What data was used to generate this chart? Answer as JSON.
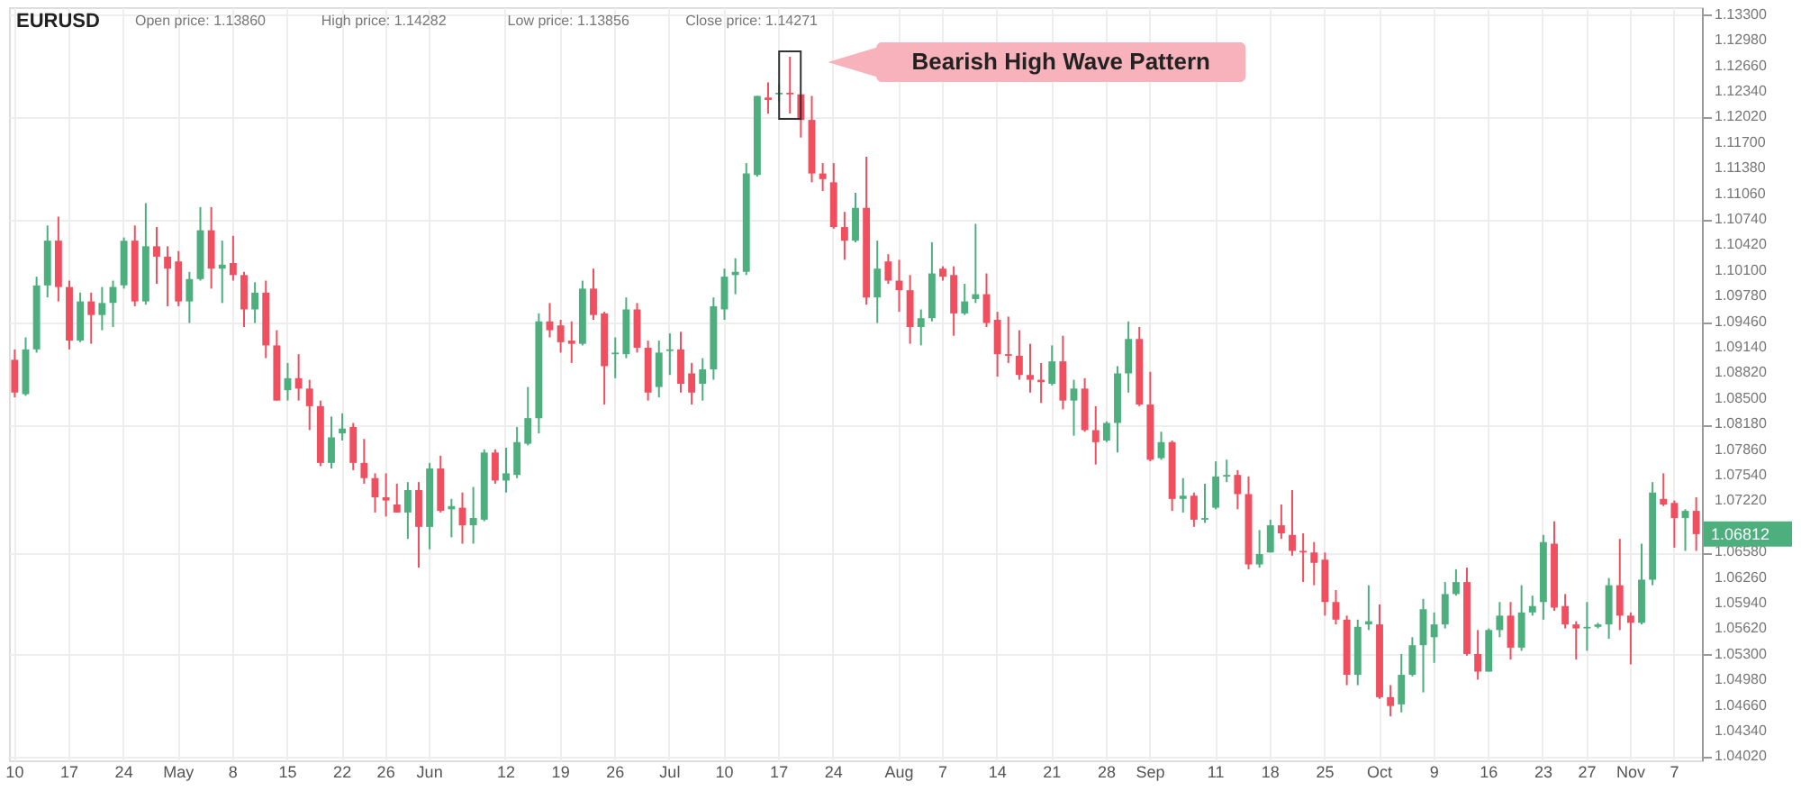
{
  "chart_data": {
    "type": "candlestick",
    "title": "EURUSD",
    "annotations": [
      "Open price: 1.13860",
      "High price: 1.14282",
      "Low price: 1.13856",
      "Close price: 1.14271",
      "Bearish High Wave Pattern",
      "1.06812"
    ],
    "categories": [
      "10",
      null,
      null,
      null,
      null,
      "17",
      null,
      null,
      null,
      null,
      "24",
      null,
      null,
      null,
      null,
      "May",
      null,
      null,
      null,
      null,
      "8",
      null,
      null,
      null,
      null,
      "15",
      null,
      null,
      null,
      null,
      "22",
      null,
      null,
      null,
      "26",
      null,
      null,
      null,
      "Jun",
      null,
      null,
      null,
      null,
      null,
      null,
      "12",
      null,
      null,
      null,
      null,
      "19",
      null,
      null,
      null,
      null,
      "26",
      null,
      null,
      null,
      null,
      "Jul",
      null,
      null,
      null,
      null,
      "10",
      null,
      null,
      null,
      null,
      "17",
      null,
      null,
      null,
      null,
      "24",
      null,
      null,
      null,
      null,
      null,
      "Aug",
      null,
      null,
      null,
      "7",
      null,
      null,
      null,
      null,
      "14",
      null,
      null,
      null,
      null,
      "21",
      null,
      null,
      null,
      null,
      "28",
      null,
      null,
      null,
      "Sep",
      null,
      null,
      null,
      null,
      null,
      "11",
      null,
      null,
      null,
      null,
      "18",
      null,
      null,
      null,
      null,
      "25",
      null,
      null,
      null,
      null,
      "Oct",
      null,
      null,
      null,
      null,
      "9",
      null,
      null,
      null,
      null,
      "16",
      null,
      null,
      null,
      null,
      "23",
      null,
      null,
      null,
      "27",
      null,
      null,
      null,
      "Nov",
      null,
      null,
      null,
      "7",
      null,
      null
    ],
    "ohlc": [
      [
        1.0899,
        1.0912,
        1.0852,
        1.0858
      ],
      [
        1.0856,
        1.0927,
        1.0854,
        1.0912
      ],
      [
        1.0912,
        1.1003,
        1.0908,
        1.0992
      ],
      [
        1.0992,
        1.1067,
        1.0977,
        1.1048
      ],
      [
        1.1048,
        1.1078,
        1.0972,
        1.099
      ],
      [
        1.099,
        1.0998,
        1.0912,
        1.0923
      ],
      [
        1.0923,
        1.0983,
        1.0921,
        1.0972
      ],
      [
        1.0972,
        1.0983,
        1.0919,
        1.0955
      ],
      [
        1.0955,
        1.099,
        1.0936,
        1.097
      ],
      [
        1.097,
        1.0998,
        1.094,
        1.099
      ],
      [
        1.0992,
        1.1052,
        1.0988,
        1.1048
      ],
      [
        1.1048,
        1.1067,
        1.0966,
        1.0972
      ],
      [
        1.0972,
        1.1095,
        1.0968,
        1.1041
      ],
      [
        1.1041,
        1.1065,
        1.0994,
        1.1028
      ],
      [
        1.1028,
        1.1041,
        1.0966,
        1.1013
      ],
      [
        1.1022,
        1.1035,
        1.0966,
        1.0972
      ],
      [
        1.0972,
        1.1009,
        1.0945,
        1.1
      ],
      [
        1.1,
        1.109,
        1.0998,
        1.1061
      ],
      [
        1.1061,
        1.109,
        1.0988,
        1.1013
      ],
      [
        1.1013,
        1.1048,
        1.097,
        1.1018
      ],
      [
        1.102,
        1.1054,
        1.0998,
        1.1005
      ],
      [
        1.1005,
        1.1009,
        1.094,
        1.0962
      ],
      [
        1.0962,
        1.0996,
        1.0945,
        1.0983
      ],
      [
        1.0983,
        1.0998,
        1.0901,
        1.0917
      ],
      [
        1.0917,
        1.0936,
        1.0848,
        1.0848
      ],
      [
        1.0861,
        1.0895,
        1.0848,
        1.0876
      ],
      [
        1.0876,
        1.0906,
        1.0848,
        1.0863
      ],
      [
        1.0863,
        1.0874,
        1.0811,
        1.0841
      ],
      [
        1.0841,
        1.0848,
        1.0766,
        1.077
      ],
      [
        1.077,
        1.0828,
        1.0763,
        1.0802
      ],
      [
        1.0807,
        1.0832,
        1.0798,
        1.0813
      ],
      [
        1.0815,
        1.082,
        1.0761,
        1.077
      ],
      [
        1.077,
        1.08,
        1.0744,
        1.0751
      ],
      [
        1.0751,
        1.0757,
        1.0708,
        1.0727
      ],
      [
        1.0727,
        1.0757,
        1.0703,
        1.0723
      ],
      [
        1.0718,
        1.0744,
        1.0708,
        1.0708
      ],
      [
        1.0708,
        1.0746,
        1.0675,
        1.0736
      ],
      [
        1.0736,
        1.0746,
        1.0639,
        1.069
      ],
      [
        1.069,
        1.077,
        1.0662,
        1.0763
      ],
      [
        1.0763,
        1.0779,
        1.0708,
        1.071
      ],
      [
        1.0712,
        1.0725,
        1.0677,
        1.0716
      ],
      [
        1.0714,
        1.0733,
        1.0669,
        1.0692
      ],
      [
        1.0692,
        1.074,
        1.0669,
        1.0701
      ],
      [
        1.0699,
        1.0787,
        1.0697,
        1.0783
      ],
      [
        1.0783,
        1.0787,
        1.0744,
        1.0748
      ],
      [
        1.0748,
        1.0789,
        1.0733,
        1.0757
      ],
      [
        1.0755,
        1.0815,
        1.0751,
        1.0796
      ],
      [
        1.0794,
        1.0865,
        1.0792,
        1.0826
      ],
      [
        1.0826,
        1.0957,
        1.0807,
        1.0947
      ],
      [
        1.0947,
        1.097,
        1.0927,
        1.0936
      ],
      [
        1.0942,
        1.0949,
        1.0908,
        1.0921
      ],
      [
        1.0923,
        1.0947,
        1.0895,
        1.0919
      ],
      [
        1.0919,
        1.0998,
        1.0917,
        1.0988
      ],
      [
        1.0988,
        1.1013,
        1.0949,
        1.0955
      ],
      [
        1.0957,
        1.0959,
        1.0843,
        1.0891
      ],
      [
        1.0906,
        1.0927,
        1.0876,
        1.0908
      ],
      [
        1.0906,
        1.0977,
        1.0901,
        1.0962
      ],
      [
        1.0962,
        1.097,
        1.0908,
        1.0914
      ],
      [
        1.0914,
        1.0923,
        1.0848,
        1.0858
      ],
      [
        1.0865,
        1.0923,
        1.0852,
        1.0908
      ],
      [
        1.091,
        1.0932,
        1.088,
        1.0912
      ],
      [
        1.0912,
        1.0934,
        1.0858,
        1.0869
      ],
      [
        1.0882,
        1.0895,
        1.0843,
        1.0858
      ],
      [
        1.0869,
        1.0901,
        1.0848,
        1.0887
      ],
      [
        1.0887,
        1.0977,
        1.0874,
        1.0966
      ],
      [
        1.0962,
        1.1013,
        1.0949,
        1.1003
      ],
      [
        1.1005,
        1.1026,
        1.0981,
        1.1009
      ],
      [
        1.1009,
        1.1145,
        1.1005,
        1.1132
      ],
      [
        1.113,
        1.1229,
        1.1128,
        1.1229
      ],
      [
        1.1227,
        1.1246,
        1.1207,
        1.1224
      ],
      [
        1.1231,
        1.1244,
        1.1222,
        1.1233
      ],
      [
        1.1233,
        1.1278,
        1.1207,
        1.1231
      ],
      [
        1.1231,
        1.1231,
        1.1177,
        1.1199
      ],
      [
        1.1199,
        1.1229,
        1.1121,
        1.1132
      ],
      [
        1.1132,
        1.1145,
        1.111,
        1.1125
      ],
      [
        1.1121,
        1.1145,
        1.1063,
        1.1065
      ],
      [
        1.1065,
        1.1084,
        1.1024,
        1.1048
      ],
      [
        1.1048,
        1.1108,
        1.1046,
        1.1089
      ],
      [
        1.1089,
        1.1153,
        1.0968,
        1.0977
      ],
      [
        1.0977,
        1.1048,
        1.0945,
        1.1013
      ],
      [
        1.1022,
        1.1031,
        1.0994,
        1.0998
      ],
      [
        1.0998,
        1.1024,
        1.0959,
        1.0986
      ],
      [
        1.0986,
        1.1005,
        1.0919,
        1.094
      ],
      [
        1.094,
        1.0962,
        1.0917,
        1.0951
      ],
      [
        1.0951,
        1.1046,
        1.0947,
        1.1007
      ],
      [
        1.1013,
        1.1016,
        1.0998,
        1.1003
      ],
      [
        1.1005,
        1.1016,
        1.0929,
        1.0957
      ],
      [
        1.0957,
        1.0994,
        1.0955,
        1.0972
      ],
      [
        1.0975,
        1.1069,
        1.097,
        1.0981
      ],
      [
        1.0981,
        1.1007,
        1.094,
        1.0945
      ],
      [
        1.0949,
        1.0959,
        1.0878,
        1.0906
      ],
      [
        1.0906,
        1.0953,
        1.0895,
        1.0904
      ],
      [
        1.0904,
        1.0936,
        1.0874,
        1.088
      ],
      [
        1.088,
        1.0919,
        1.0858,
        1.0874
      ],
      [
        1.0874,
        1.0895,
        1.0845,
        1.0871
      ],
      [
        1.0869,
        1.0917,
        1.0867,
        1.0897
      ],
      [
        1.0897,
        1.0929,
        1.0837,
        1.0848
      ],
      [
        1.0848,
        1.0874,
        1.0804,
        1.0863
      ],
      [
        1.0863,
        1.0876,
        1.0809,
        1.0811
      ],
      [
        1.0811,
        1.0841,
        1.0768,
        1.0796
      ],
      [
        1.0798,
        1.0822,
        1.0796,
        1.082
      ],
      [
        1.082,
        1.0891,
        1.0783,
        1.0882
      ],
      [
        1.0882,
        1.0947,
        1.0858,
        1.0925
      ],
      [
        1.0925,
        1.094,
        1.0841,
        1.0843
      ],
      [
        1.0843,
        1.0884,
        1.0772,
        1.0774
      ],
      [
        1.0776,
        1.0809,
        1.0774,
        1.0796
      ],
      [
        1.0796,
        1.0798,
        1.071,
        1.0725
      ],
      [
        1.0725,
        1.0751,
        1.0708,
        1.0729
      ],
      [
        1.0729,
        1.0733,
        1.069,
        1.0699
      ],
      [
        1.0699,
        1.0744,
        1.0695,
        1.0701
      ],
      [
        1.0714,
        1.0772,
        1.0712,
        1.0753
      ],
      [
        1.0753,
        1.0774,
        1.0746,
        1.0755
      ],
      [
        1.0755,
        1.0761,
        1.0712,
        1.0731
      ],
      [
        1.0731,
        1.0753,
        1.0637,
        1.0643
      ],
      [
        1.0643,
        1.0686,
        1.0639,
        1.0656
      ],
      [
        1.0658,
        1.0699,
        1.0658,
        1.0692
      ],
      [
        1.0692,
        1.0718,
        1.0675,
        1.0682
      ],
      [
        1.068,
        1.0736,
        1.0654,
        1.066
      ],
      [
        1.066,
        1.0682,
        1.0621,
        1.0658
      ],
      [
        1.0658,
        1.0671,
        1.0617,
        1.0645
      ],
      [
        1.0649,
        1.0658,
        1.0579,
        1.0596
      ],
      [
        1.0596,
        1.0611,
        1.0568,
        1.0574
      ],
      [
        1.0574,
        1.0579,
        1.0492,
        1.0505
      ],
      [
        1.0505,
        1.0574,
        1.0492,
        1.0565
      ],
      [
        1.0568,
        1.0617,
        1.0561,
        1.0572
      ],
      [
        1.0568,
        1.0593,
        1.0475,
        1.0477
      ],
      [
        1.0477,
        1.0492,
        1.0453,
        1.0466
      ],
      [
        1.0468,
        1.0531,
        1.0458,
        1.0505
      ],
      [
        1.0505,
        1.0552,
        1.0503,
        1.0542
      ],
      [
        1.0542,
        1.06,
        1.0483,
        1.0587
      ],
      [
        1.0552,
        1.0583,
        1.052,
        1.0568
      ],
      [
        1.0568,
        1.0621,
        1.0563,
        1.0606
      ],
      [
        1.0606,
        1.0637,
        1.0604,
        1.0621
      ],
      [
        1.0621,
        1.0639,
        1.0529,
        1.0531
      ],
      [
        1.0531,
        1.0561,
        1.0499,
        1.0509
      ],
      [
        1.0509,
        1.0563,
        1.0509,
        1.0561
      ],
      [
        1.0561,
        1.0596,
        1.0552,
        1.0579
      ],
      [
        1.0579,
        1.0596,
        1.0524,
        1.0539
      ],
      [
        1.0539,
        1.0617,
        1.0535,
        1.0583
      ],
      [
        1.0583,
        1.0604,
        1.0579,
        1.0591
      ],
      [
        1.0596,
        1.068,
        1.0574,
        1.0671
      ],
      [
        1.0669,
        1.0697,
        1.0585,
        1.0589
      ],
      [
        1.0591,
        1.0606,
        1.0563,
        1.0568
      ],
      [
        1.0568,
        1.0572,
        1.0524,
        1.0563
      ],
      [
        1.0563,
        1.0596,
        1.0535,
        1.0565
      ],
      [
        1.0565,
        1.057,
        1.0563,
        1.0568
      ],
      [
        1.0568,
        1.0626,
        1.055,
        1.0617
      ],
      [
        1.0617,
        1.0675,
        1.0561,
        1.0579
      ],
      [
        1.0579,
        1.0583,
        1.0518,
        1.057
      ],
      [
        1.057,
        1.0669,
        1.0568,
        1.0624
      ],
      [
        1.0624,
        1.0746,
        1.0617,
        1.0733
      ],
      [
        1.0725,
        1.0757,
        1.0716,
        1.0718
      ],
      [
        1.072,
        1.0723,
        1.0664,
        1.0701
      ],
      [
        1.0701,
        1.0712,
        1.066,
        1.071
      ],
      [
        1.071,
        1.0727,
        1.066,
        1.0681
      ]
    ],
    "colors": [
      "#ef4f5f",
      "#4caf7d",
      "#4caf7d",
      "#4caf7d",
      "#ef4f5f",
      "#ef4f5f",
      "#4caf7d",
      "#ef4f5f",
      "#4caf7d",
      "#4caf7d",
      "#4caf7d",
      "#ef4f5f",
      "#4caf7d",
      "#ef4f5f",
      "#ef4f5f",
      "#ef4f5f",
      "#4caf7d",
      "#4caf7d",
      "#ef4f5f",
      "#4caf7d",
      "#ef4f5f",
      "#ef4f5f",
      "#4caf7d",
      "#ef4f5f",
      "#ef4f5f",
      "#4caf7d",
      "#ef4f5f",
      "#ef4f5f",
      "#ef4f5f",
      "#4caf7d",
      "#4caf7d",
      "#ef4f5f",
      "#ef4f5f",
      "#ef4f5f",
      "#ef4f5f",
      "#ef4f5f",
      "#4caf7d",
      "#ef4f5f",
      "#4caf7d",
      "#ef4f5f",
      "#4caf7d",
      "#ef4f5f",
      "#4caf7d",
      "#4caf7d",
      "#ef4f5f",
      "#4caf7d",
      "#4caf7d",
      "#4caf7d",
      "#4caf7d",
      "#ef4f5f",
      "#ef4f5f",
      "#ef4f5f",
      "#4caf7d",
      "#ef4f5f",
      "#ef4f5f",
      "#4caf7d",
      "#4caf7d",
      "#ef4f5f",
      "#ef4f5f",
      "#4caf7d",
      "#4caf7d",
      "#ef4f5f",
      "#ef4f5f",
      "#4caf7d",
      "#4caf7d",
      "#4caf7d",
      "#4caf7d",
      "#4caf7d",
      "#4caf7d",
      "#ef4f5f",
      "#4caf7d",
      "#ef4f5f",
      "#ef4f5f",
      "#ef4f5f",
      "#ef4f5f",
      "#ef4f5f",
      "#ef4f5f",
      "#4caf7d",
      "#ef4f5f",
      "#4caf7d",
      "#ef4f5f",
      "#ef4f5f",
      "#ef4f5f",
      "#4caf7d",
      "#4caf7d",
      "#ef4f5f",
      "#ef4f5f",
      "#4caf7d",
      "#4caf7d",
      "#ef4f5f",
      "#ef4f5f",
      "#ef4f5f",
      "#ef4f5f",
      "#ef4f5f",
      "#ef4f5f",
      "#4caf7d",
      "#ef4f5f",
      "#4caf7d",
      "#ef4f5f",
      "#ef4f5f",
      "#4caf7d",
      "#4caf7d",
      "#4caf7d",
      "#ef4f5f",
      "#ef4f5f",
      "#4caf7d",
      "#ef4f5f",
      "#4caf7d",
      "#ef4f5f",
      "#4caf7d",
      "#4caf7d",
      "#4caf7d",
      "#ef4f5f",
      "#ef4f5f",
      "#4caf7d",
      "#4caf7d",
      "#ef4f5f",
      "#ef4f5f",
      "#ef4f5f",
      "#ef4f5f",
      "#ef4f5f",
      "#ef4f5f",
      "#ef4f5f",
      "#4caf7d",
      "#4caf7d",
      "#ef4f5f",
      "#ef4f5f",
      "#4caf7d",
      "#4caf7d",
      "#4caf7d",
      "#4caf7d",
      "#4caf7d",
      "#4caf7d",
      "#ef4f5f",
      "#ef4f5f",
      "#4caf7d",
      "#4caf7d",
      "#ef4f5f",
      "#4caf7d",
      "#4caf7d",
      "#4caf7d",
      "#ef4f5f",
      "#ef4f5f",
      "#ef4f5f",
      "#4caf7d",
      "#4caf7d",
      "#4caf7d",
      "#ef4f5f",
      "#ef4f5f",
      "#4caf7d",
      "#4caf7d",
      "#ef4f5f",
      "#ef4f5f",
      "#4caf7d",
      "#ef4f5f"
    ],
    "ylim": [
      1.0398,
      1.134
    ],
    "yticks": [
      {
        "value": 1.133,
        "label": "1.13300"
      },
      {
        "value": 1.1298,
        "label": "1.12980"
      },
      {
        "value": 1.1266,
        "label": "1.12660"
      },
      {
        "value": 1.1234,
        "label": "1.12340"
      },
      {
        "value": 1.1202,
        "label": "1.12020"
      },
      {
        "value": 1.117,
        "label": "1.11700"
      },
      {
        "value": 1.1138,
        "label": "1.11380"
      },
      {
        "value": 1.1106,
        "label": "1.11060"
      },
      {
        "value": 1.1074,
        "label": "1.10740"
      },
      {
        "value": 1.1042,
        "label": "1.10420"
      },
      {
        "value": 1.101,
        "label": "1.10100"
      },
      {
        "value": 1.0978,
        "label": "1.09780"
      },
      {
        "value": 1.0946,
        "label": "1.09460"
      },
      {
        "value": 1.0914,
        "label": "1.09140"
      },
      {
        "value": 1.0882,
        "label": "1.08820"
      },
      {
        "value": 1.085,
        "label": "1.08500"
      },
      {
        "value": 1.0818,
        "label": "1.08180"
      },
      {
        "value": 1.0786,
        "label": "1.07860"
      },
      {
        "value": 1.0754,
        "label": "1.07540"
      },
      {
        "value": 1.0722,
        "label": "1.07220"
      },
      {
        "value": 1.0658,
        "label": "1.06580"
      },
      {
        "value": 1.0626,
        "label": "1.06260"
      },
      {
        "value": 1.0594,
        "label": "1.05940"
      },
      {
        "value": 1.0562,
        "label": "1.05620"
      },
      {
        "value": 1.053,
        "label": "1.05300"
      },
      {
        "value": 1.0498,
        "label": "1.04980"
      },
      {
        "value": 1.0466,
        "label": "1.04660"
      },
      {
        "value": 1.0434,
        "label": "1.04340"
      },
      {
        "value": 1.0402,
        "label": "1.04020"
      }
    ],
    "grid": true
  }
}
